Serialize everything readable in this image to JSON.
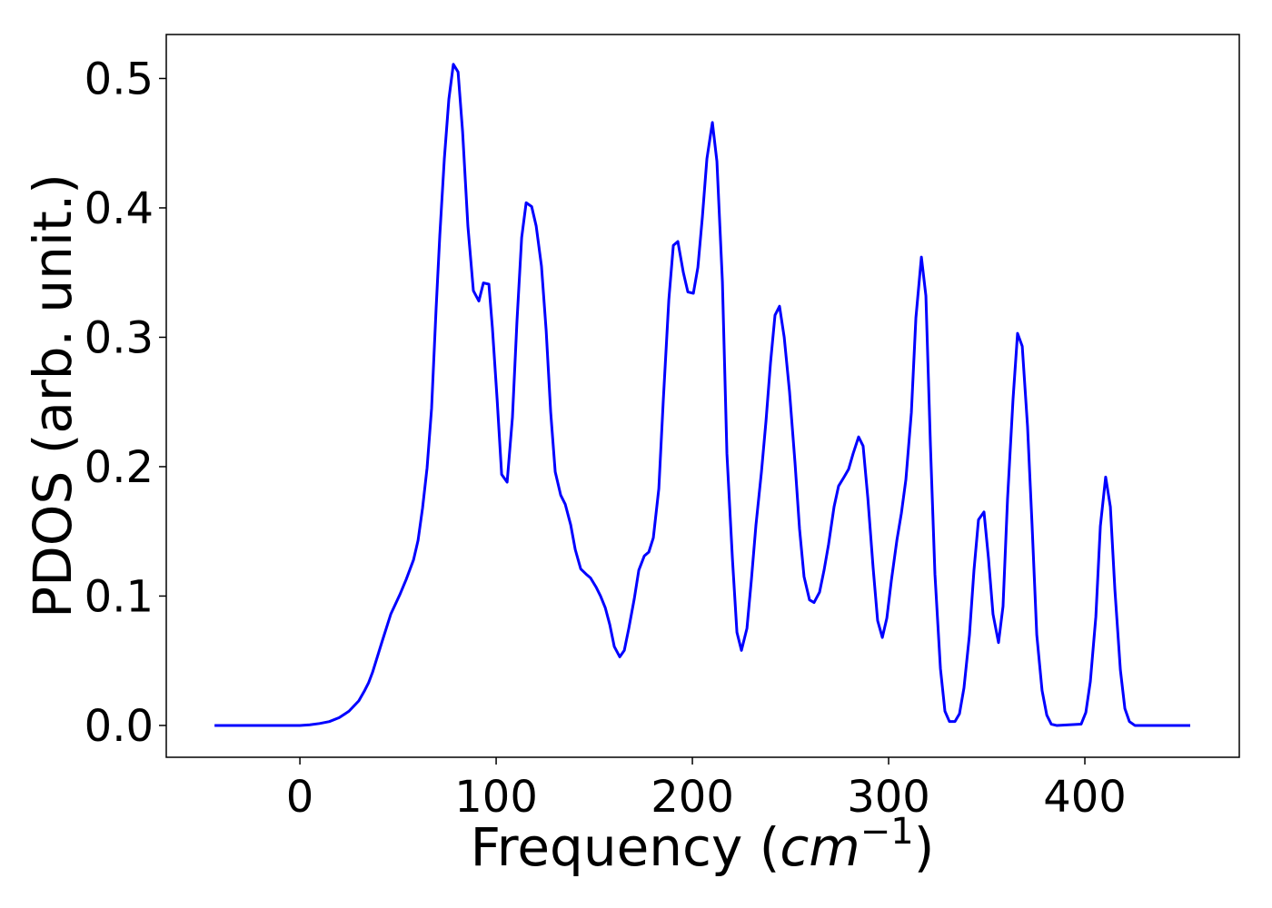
{
  "chart_data": {
    "type": "line",
    "ylabel": "PDOS (arb. unit.)",
    "xlabel_parts": [
      "Frequency (",
      "cm",
      "−1",
      ")"
    ],
    "xlim": [
      -68.1,
      478.7
    ],
    "ylim": [
      -0.0246,
      0.534
    ],
    "xticks": [
      0,
      100,
      200,
      300,
      400
    ],
    "yticks": [
      {
        "value": 0,
        "label": "0.0"
      },
      0.1,
      0.2,
      0.3,
      0.4,
      0.5
    ],
    "series": [
      {
        "color": "#0000ff",
        "x": [
          -43.5,
          0,
          5,
          10,
          15,
          20,
          25,
          30,
          33,
          35,
          37,
          41.7,
          46.3,
          50.9,
          54.2,
          57.9,
          60.2,
          62.5,
          64.8,
          67.1,
          69.4,
          71.3,
          73.6,
          75.9,
          78.2,
          80.6,
          82.9,
          85.6,
          88.4,
          91.2,
          93.5,
          96.3,
          98.1,
          100.5,
          102.8,
          105.6,
          108.3,
          110.6,
          113,
          115.3,
          118.1,
          120.4,
          123.1,
          125.5,
          127.8,
          130.1,
          132.9,
          135.2,
          138,
          140.3,
          143.1,
          145.8,
          148.1,
          150.9,
          153.2,
          155.6,
          157.9,
          160.2,
          163,
          165.3,
          167.6,
          170.4,
          172.7,
          175.5,
          177.8,
          180.1,
          182.9,
          185.2,
          188,
          190.3,
          192.6,
          195.4,
          197.7,
          200.5,
          202.8,
          205.1,
          207.4,
          210.2,
          212.5,
          215.3,
          217.6,
          220.4,
          222.7,
          225,
          227.8,
          230.1,
          232.4,
          235.2,
          237.5,
          239.8,
          242.1,
          244.4,
          246.8,
          249.5,
          252.3,
          254.6,
          256.9,
          259.7,
          262,
          264.8,
          267.1,
          269.4,
          272.2,
          274.5,
          277.3,
          279.6,
          281.9,
          284.7,
          287,
          289.4,
          292.1,
          294.4,
          296.8,
          299.1,
          301.4,
          304.2,
          306.5,
          308.8,
          311.6,
          313.9,
          316.7,
          319,
          321.3,
          323.6,
          326.4,
          328.7,
          331,
          333.8,
          336.1,
          338.4,
          341.2,
          343.5,
          345.8,
          348.6,
          350.9,
          353.2,
          356,
          358.3,
          360.6,
          363.4,
          365.7,
          368.1,
          370.8,
          373.1,
          375.5,
          378.2,
          380.6,
          382.9,
          385.6,
          398.1,
          400.5,
          402.8,
          405.6,
          407.9,
          410.6,
          413,
          415.3,
          418.1,
          420.4,
          422.7,
          425.5,
          453.7
        ],
        "values": [
          0,
          0,
          0.0005,
          0.0015,
          0.003,
          0.006,
          0.011,
          0.019,
          0.027,
          0.033,
          0.041,
          0.064,
          0.086,
          0.101,
          0.113,
          0.128,
          0.143,
          0.168,
          0.199,
          0.245,
          0.322,
          0.379,
          0.438,
          0.484,
          0.511,
          0.505,
          0.459,
          0.386,
          0.336,
          0.328,
          0.342,
          0.341,
          0.307,
          0.252,
          0.194,
          0.188,
          0.238,
          0.312,
          0.377,
          0.404,
          0.401,
          0.386,
          0.355,
          0.305,
          0.242,
          0.196,
          0.178,
          0.171,
          0.155,
          0.136,
          0.121,
          0.117,
          0.114,
          0.107,
          0.1,
          0.091,
          0.078,
          0.061,
          0.053,
          0.058,
          0.075,
          0.098,
          0.12,
          0.131,
          0.134,
          0.145,
          0.183,
          0.252,
          0.329,
          0.371,
          0.374,
          0.35,
          0.335,
          0.334,
          0.354,
          0.393,
          0.438,
          0.466,
          0.436,
          0.343,
          0.21,
          0.129,
          0.072,
          0.058,
          0.075,
          0.113,
          0.155,
          0.196,
          0.235,
          0.28,
          0.317,
          0.324,
          0.3,
          0.258,
          0.203,
          0.152,
          0.115,
          0.097,
          0.095,
          0.103,
          0.12,
          0.14,
          0.169,
          0.185,
          0.192,
          0.198,
          0.21,
          0.223,
          0.216,
          0.176,
          0.122,
          0.081,
          0.068,
          0.083,
          0.112,
          0.143,
          0.164,
          0.19,
          0.242,
          0.315,
          0.362,
          0.332,
          0.217,
          0.117,
          0.044,
          0.011,
          0.003,
          0.003,
          0.009,
          0.029,
          0.07,
          0.12,
          0.159,
          0.165,
          0.129,
          0.086,
          0.064,
          0.092,
          0.175,
          0.252,
          0.303,
          0.293,
          0.231,
          0.155,
          0.07,
          0.027,
          0.008,
          0.001,
          0,
          0.001,
          0.01,
          0.034,
          0.084,
          0.154,
          0.192,
          0.169,
          0.105,
          0.043,
          0.013,
          0.003,
          0,
          0
        ]
      }
    ]
  }
}
